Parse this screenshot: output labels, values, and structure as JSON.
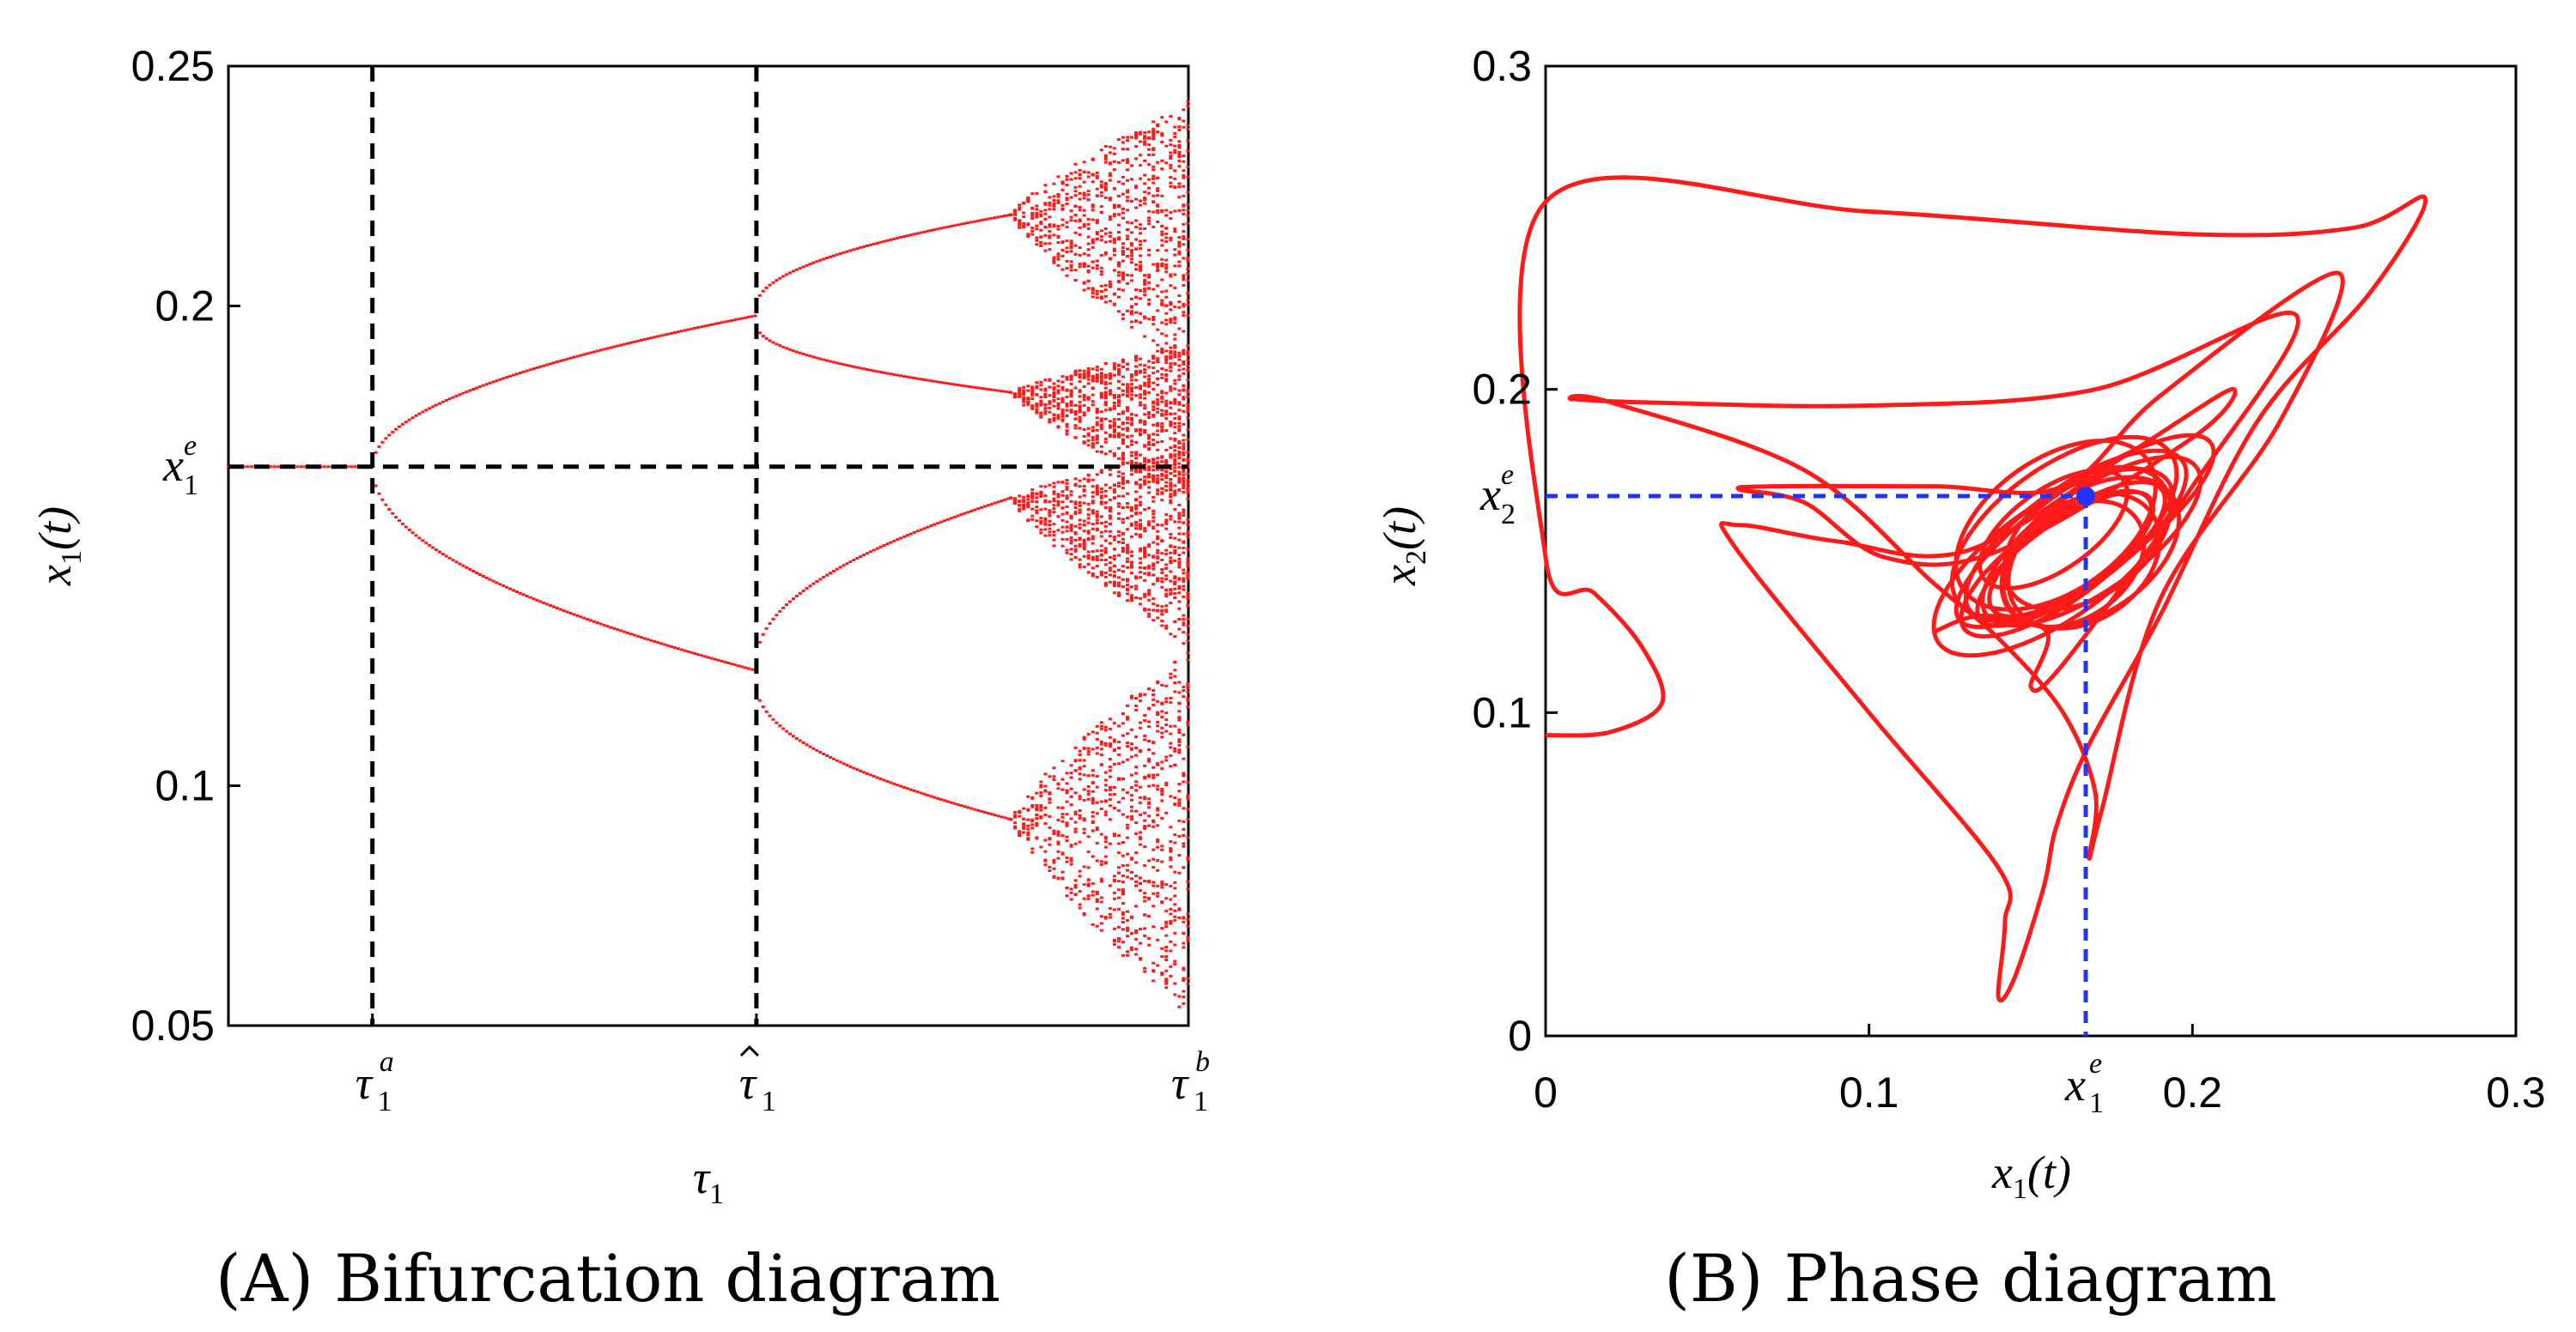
{
  "colors": {
    "trajectory": "#ff1a1a",
    "marker": "#1f35ff",
    "reference_line": "#000000",
    "axis": "#000000"
  },
  "chart_data": [
    {
      "panel": "A",
      "type": "scatter",
      "caption": "(A) Bifurcation diagram",
      "title": "",
      "xlabel": {
        "symbol": "τ",
        "sub": "1"
      },
      "ylabel": {
        "symbol": "x",
        "sub": "1",
        "arg": "(t)"
      },
      "x_range": [
        0,
        1
      ],
      "ylim": [
        0.05,
        0.25
      ],
      "y_ticks": [
        {
          "value": 0.05,
          "label": "0.05"
        },
        {
          "value": 0.1,
          "label": "0.1"
        },
        {
          "value": 0.2,
          "label": "0.2"
        },
        {
          "value": 0.25,
          "label": "0.25"
        }
      ],
      "y_special_tick": {
        "value": 0.1665,
        "symbol": "x",
        "sub": "1",
        "sup": "e"
      },
      "x_ticks": [
        {
          "position": 0.15,
          "symbol": "τ",
          "sub": "1",
          "sup": "a",
          "hat": false
        },
        {
          "position": 0.55,
          "symbol": "τ",
          "sub": "1",
          "sup": "",
          "hat": true
        },
        {
          "position": 1.0,
          "symbol": "τ",
          "sub": "1",
          "sup": "b",
          "hat": false
        }
      ],
      "reference_lines": {
        "horizontal": [
          0.1665
        ],
        "vertical": [
          0.15,
          0.55
        ]
      },
      "regimes": [
        {
          "name": "stable equilibrium",
          "x_from": 0.0,
          "x_to": 0.15,
          "values": [
            0.1665
          ]
        },
        {
          "name": "period-2 branch upper",
          "x_from": 0.15,
          "x_to": 0.55,
          "start": 0.1665,
          "end": 0.198
        },
        {
          "name": "period-2 branch lower",
          "x_from": 0.15,
          "x_to": 0.55,
          "start": 0.1665,
          "end": 0.124
        },
        {
          "name": "period-4 branch 1",
          "x_from": 0.55,
          "x_to": 0.815,
          "start": 0.2,
          "end": 0.219
        },
        {
          "name": "period-4 branch 2",
          "x_from": 0.55,
          "x_to": 0.815,
          "start": 0.196,
          "end": 0.182
        },
        {
          "name": "period-4 branch 3",
          "x_from": 0.55,
          "x_to": 0.815,
          "start": 0.126,
          "end": 0.16
        },
        {
          "name": "period-4 branch 4",
          "x_from": 0.55,
          "x_to": 0.815,
          "start": 0.121,
          "end": 0.093
        },
        {
          "name": "chaotic band top",
          "x_from": 0.815,
          "x_to": 1.0,
          "base": 0.219,
          "low": 0.187,
          "high": 0.243
        },
        {
          "name": "chaotic band middle",
          "x_from": 0.815,
          "x_to": 1.0,
          "low": 0.16,
          "high": 0.192
        },
        {
          "name": "chaotic band lower",
          "x_from": 0.815,
          "x_to": 1.0,
          "low": 0.129,
          "high": 0.17
        },
        {
          "name": "chaotic band bottom",
          "x_from": 0.815,
          "x_to": 1.0,
          "base": 0.093,
          "low": 0.052,
          "high": 0.128
        }
      ]
    },
    {
      "panel": "B",
      "type": "line",
      "caption": "(B) Phase diagram",
      "title": "",
      "xlabel": {
        "symbol": "x",
        "sub": "1",
        "arg": "(t)"
      },
      "ylabel": {
        "symbol": "x",
        "sub": "2",
        "arg": "(t)"
      },
      "xlim": [
        0,
        0.3
      ],
      "ylim": [
        0,
        0.3
      ],
      "x_ticks": [
        {
          "value": 0,
          "label": "0"
        },
        {
          "value": 0.1,
          "label": "0.1"
        },
        {
          "value": 0.2,
          "label": "0.2"
        },
        {
          "value": 0.3,
          "label": "0.3"
        }
      ],
      "y_ticks": [
        {
          "value": 0,
          "label": "0"
        },
        {
          "value": 0.1,
          "label": "0.1"
        },
        {
          "value": 0.2,
          "label": "0.2"
        },
        {
          "value": 0.3,
          "label": "0.3"
        }
      ],
      "x_special_tick": {
        "value": 0.167,
        "symbol": "x",
        "sub": "1",
        "sup": "e"
      },
      "y_special_tick": {
        "value": 0.167,
        "symbol": "x",
        "sub": "2",
        "sup": "e"
      },
      "equilibrium_point": {
        "x": 0.167,
        "y": 0.167
      },
      "trajectory": [
        [
          0.0,
          0.093
        ],
        [
          0.02,
          0.094
        ],
        [
          0.036,
          0.103
        ],
        [
          0.03,
          0.12
        ],
        [
          0.015,
          0.137
        ],
        [
          0.0,
          0.148
        ],
        [
          0.0,
          0.258
        ],
        [
          0.1,
          0.255
        ],
        [
          0.2,
          0.248
        ],
        [
          0.25,
          0.25
        ],
        [
          0.272,
          0.259
        ],
        [
          0.255,
          0.23
        ],
        [
          0.22,
          0.19
        ],
        [
          0.19,
          0.13
        ],
        [
          0.168,
          0.09
        ],
        [
          0.158,
          0.065
        ],
        [
          0.154,
          0.046
        ],
        [
          0.145,
          0.018
        ],
        [
          0.14,
          0.012
        ],
        [
          0.142,
          0.035
        ],
        [
          0.14,
          0.052
        ],
        [
          0.1,
          0.1
        ],
        [
          0.058,
          0.152
        ],
        [
          0.06,
          0.158
        ],
        [
          0.09,
          0.153
        ],
        [
          0.13,
          0.15
        ],
        [
          0.18,
          0.18
        ],
        [
          0.212,
          0.2
        ],
        [
          0.2,
          0.185
        ],
        [
          0.14,
          0.15
        ],
        [
          0.105,
          0.148
        ],
        [
          0.08,
          0.165
        ],
        [
          0.06,
          0.169
        ],
        [
          0.07,
          0.17
        ],
        [
          0.12,
          0.17
        ],
        [
          0.16,
          0.17
        ],
        [
          0.19,
          0.198
        ],
        [
          0.245,
          0.236
        ],
        [
          0.227,
          0.19
        ],
        [
          0.19,
          0.135
        ],
        [
          0.172,
          0.07
        ],
        [
          0.168,
          0.055
        ],
        [
          0.17,
          0.075
        ],
        [
          0.16,
          0.1
        ],
        [
          0.14,
          0.123
        ],
        [
          0.12,
          0.14
        ],
        [
          0.08,
          0.175
        ],
        [
          0.02,
          0.196
        ],
        [
          0.008,
          0.197
        ],
        [
          0.03,
          0.196
        ],
        [
          0.1,
          0.195
        ],
        [
          0.17,
          0.2
        ],
        [
          0.232,
          0.223
        ],
        [
          0.2,
          0.17
        ],
        [
          0.16,
          0.115
        ],
        [
          0.15,
          0.108
        ],
        [
          0.155,
          0.125
        ],
        [
          0.135,
          0.13
        ],
        [
          0.12,
          0.125
        ]
      ],
      "attractor_core": {
        "center": [
          0.163,
          0.152
        ],
        "semi_major": 0.044,
        "semi_minor": 0.016,
        "angle_deg": 35,
        "loops": 14
      }
    }
  ]
}
